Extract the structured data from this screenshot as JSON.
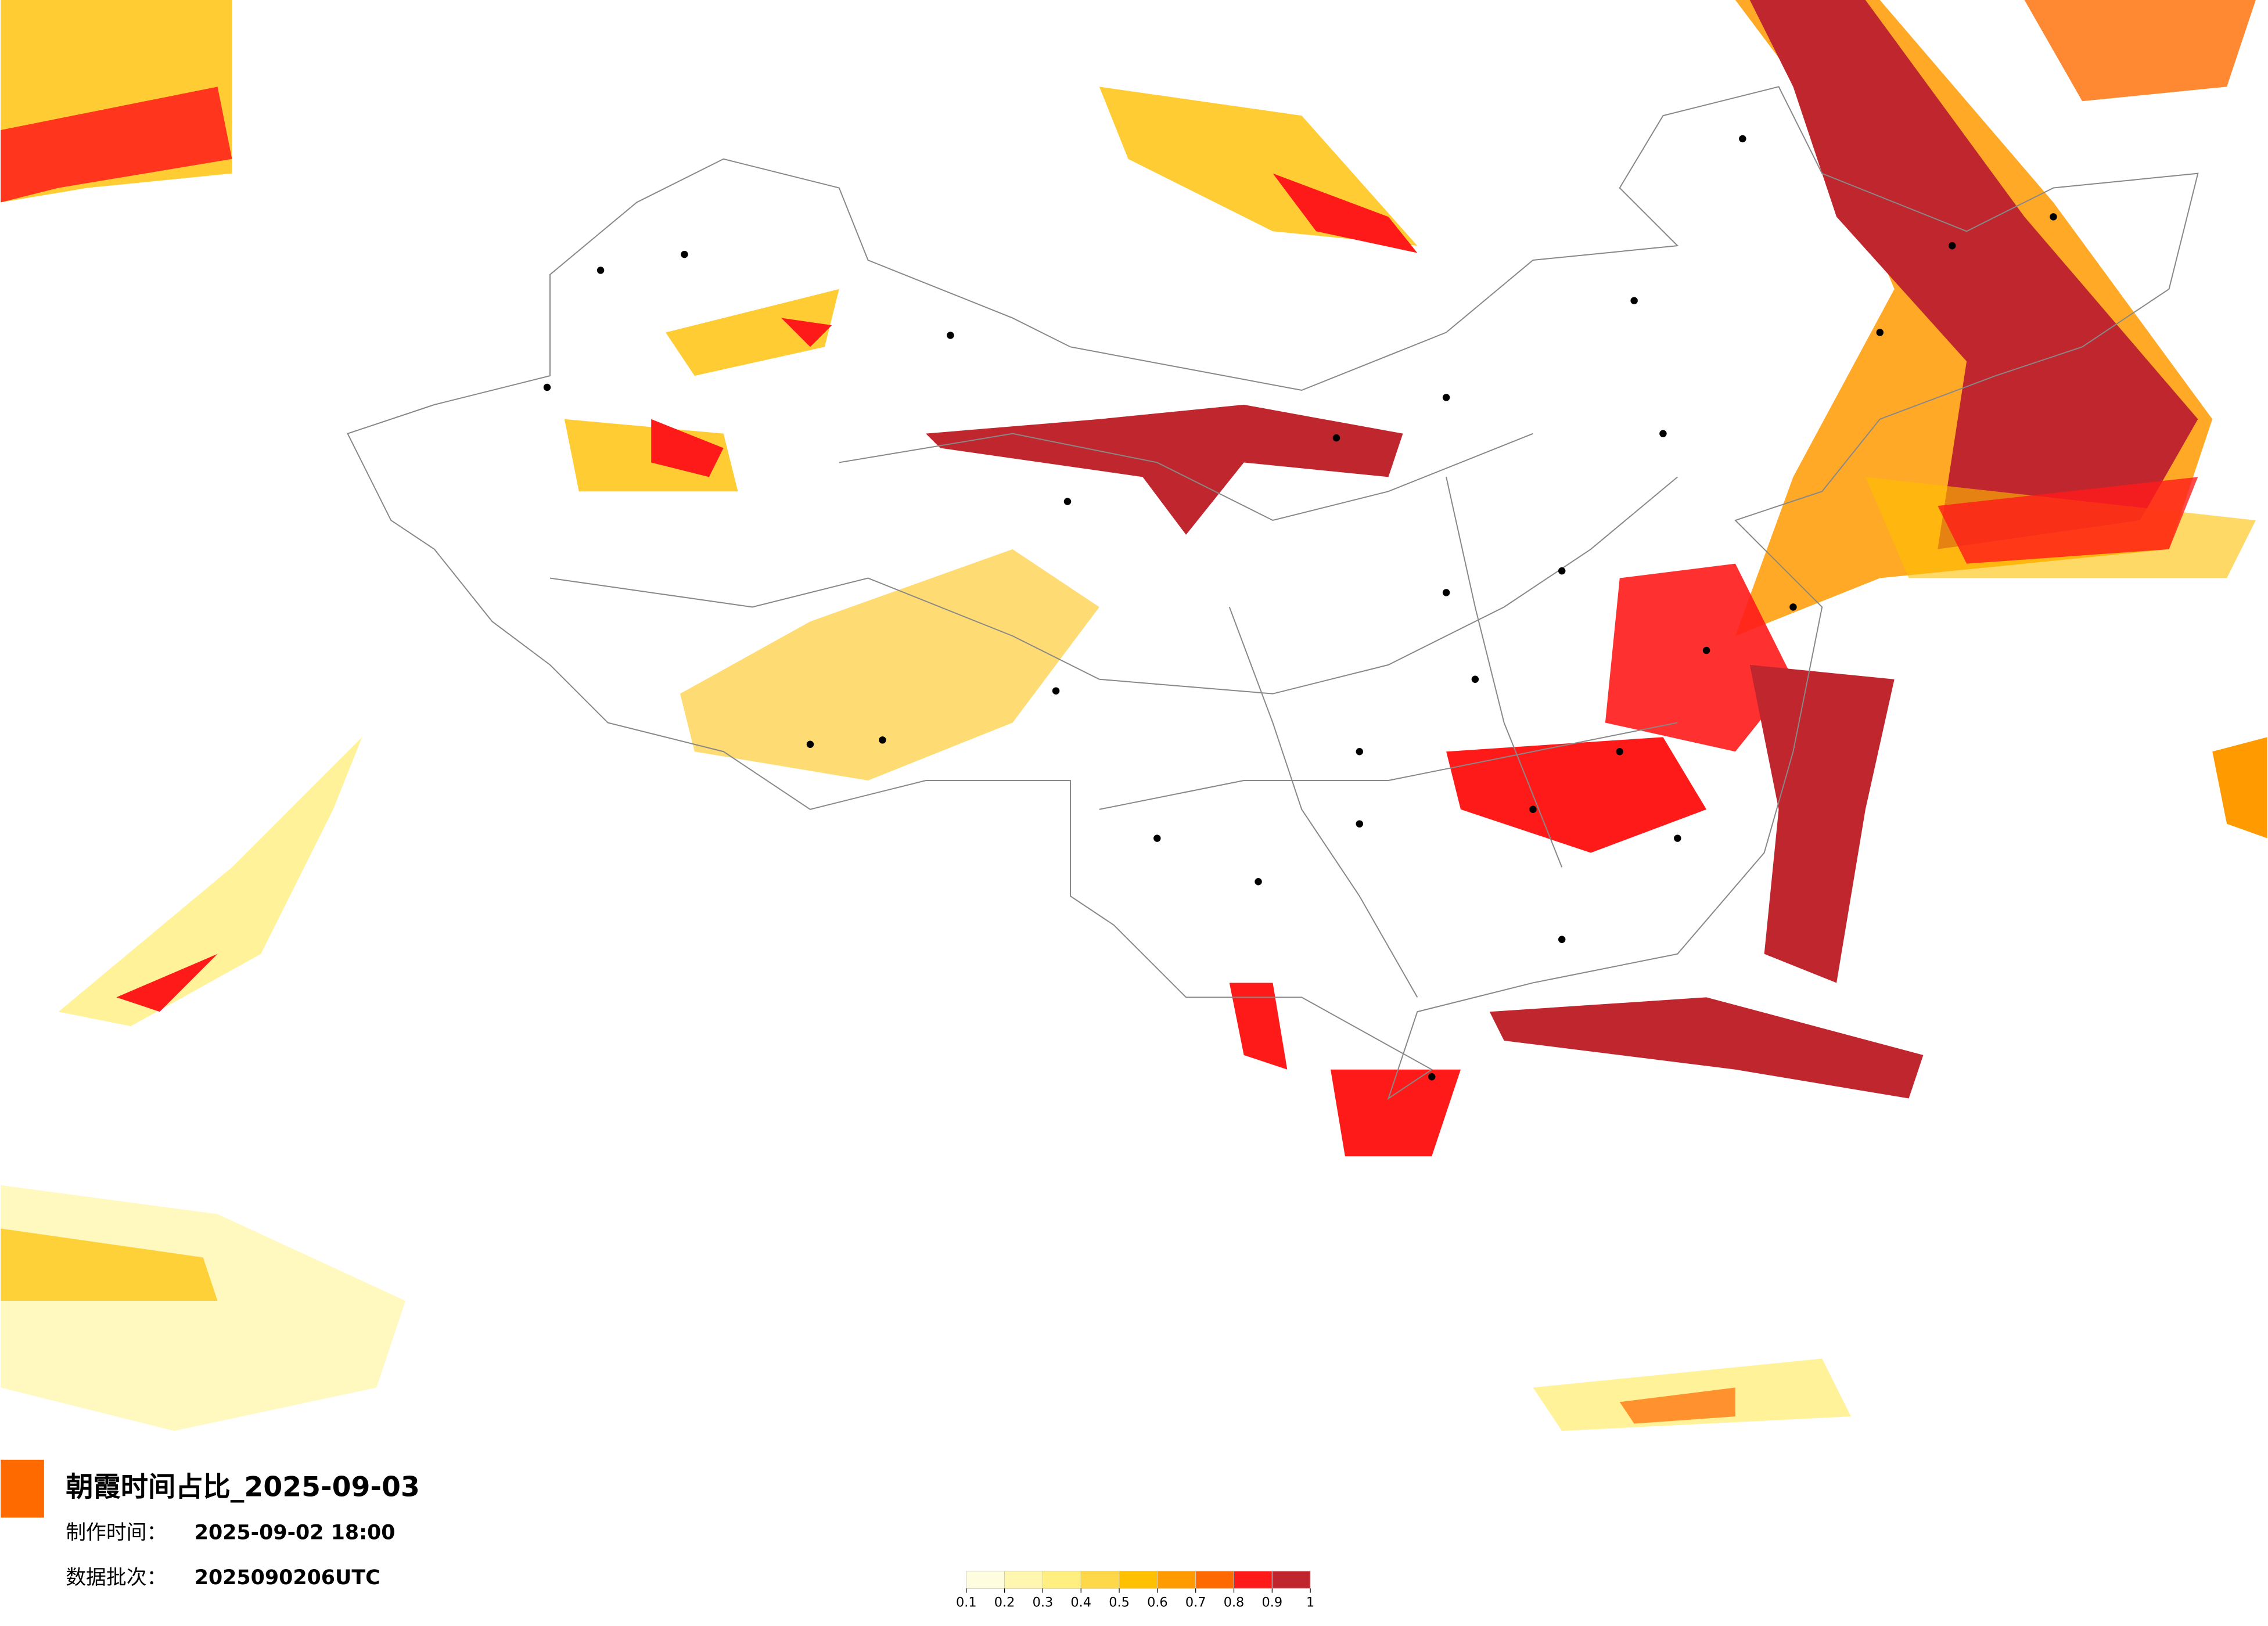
{
  "title": "朝霞时间占比_2025-09-03",
  "made_label": "制作时间：",
  "made_time": "2025-09-02 18:00",
  "batch_label": "数据批次：",
  "batch": "2025090206UTC",
  "legend": {
    "ticks": [
      0.1,
      0.2,
      0.3,
      0.4,
      0.5,
      0.6,
      0.7,
      0.8,
      0.9,
      1
    ],
    "colors": [
      "#fffde0",
      "#fff7b0",
      "#ffef80",
      "#ffd84a",
      "#ffc000",
      "#ff9a00",
      "#ff6a00",
      "#ff1a1a",
      "#c0262e"
    ]
  }
}
